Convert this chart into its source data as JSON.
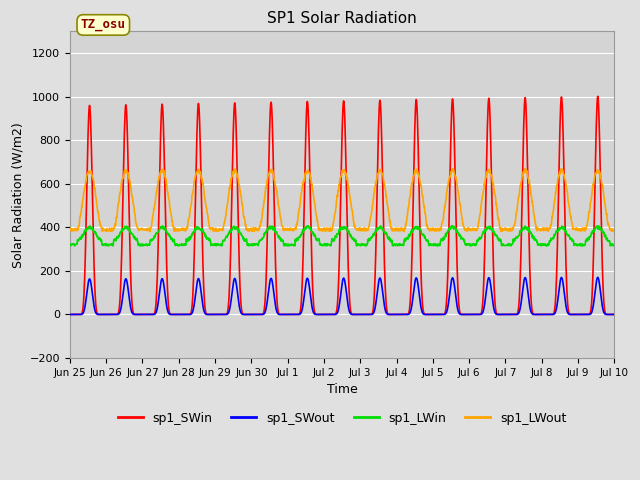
{
  "title": "SP1 Solar Radiation",
  "xlabel": "Time",
  "ylabel": "Solar Radiation (W/m2)",
  "ylim": [
    -200,
    1300
  ],
  "yticks": [
    -200,
    0,
    200,
    400,
    600,
    800,
    1000,
    1200
  ],
  "background_color": "#e0e0e0",
  "plot_bg_color": "#d4d4d4",
  "grid_color": "#ffffff",
  "colors": {
    "sp1_SWin": "#ff0000",
    "sp1_SWout": "#0000ff",
    "sp1_LWin": "#00dd00",
    "sp1_LWout": "#ffa500"
  },
  "tz_label": "TZ_osu",
  "tz_box_bg": "#ffffcc",
  "tz_box_edge": "#888800",
  "tz_text_color": "#880000",
  "n_days": 15,
  "dt_hours": 0.25,
  "tick_labels": [
    "Jun 25",
    "Jun 26",
    "Jun 27",
    "Jun 28",
    "Jun 29",
    "Jun 30",
    "Jul 1",
    "Jul 2",
    "Jul 3",
    "Jul 4",
    "Jul 5",
    "Jul 6",
    "Jul 7",
    "Jul 8",
    "Jul 9",
    "Jul 10"
  ],
  "figsize": [
    6.4,
    4.8
  ],
  "dpi": 100
}
